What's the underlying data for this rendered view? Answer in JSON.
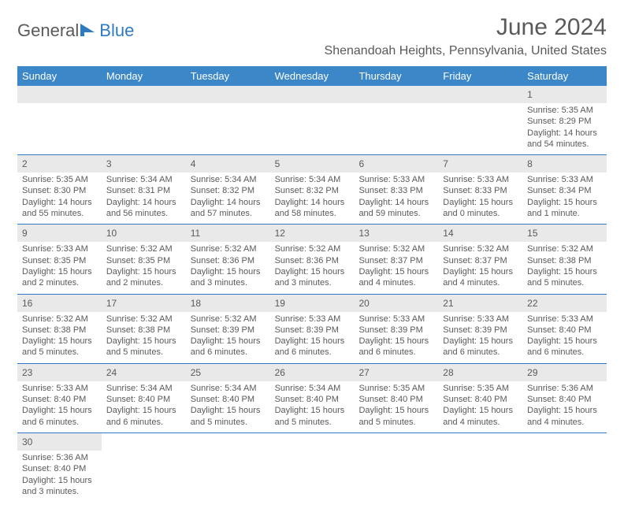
{
  "brand": {
    "general": "General",
    "blue": "Blue"
  },
  "title": "June 2024",
  "location": "Shenandoah Heights, Pennsylvania, United States",
  "colors": {
    "header_bg": "#3b87c8",
    "header_text": "#ffffff",
    "body_text": "#5a5a5a",
    "week_border": "#2f7bbf",
    "daynum_bg": "#e9e9e9",
    "logo_accent": "#2f7bbf"
  },
  "fonts": {
    "title_pt": 30,
    "location_pt": 16,
    "dayheader_pt": 13,
    "daynum_pt": 12,
    "body_pt": 11
  },
  "day_names": [
    "Sunday",
    "Monday",
    "Tuesday",
    "Wednesday",
    "Thursday",
    "Friday",
    "Saturday"
  ],
  "weeks": [
    [
      null,
      null,
      null,
      null,
      null,
      null,
      {
        "n": "1",
        "sr": "Sunrise: 5:35 AM",
        "ss": "Sunset: 8:29 PM",
        "d1": "Daylight: 14 hours",
        "d2": "and 54 minutes."
      }
    ],
    [
      {
        "n": "2",
        "sr": "Sunrise: 5:35 AM",
        "ss": "Sunset: 8:30 PM",
        "d1": "Daylight: 14 hours",
        "d2": "and 55 minutes."
      },
      {
        "n": "3",
        "sr": "Sunrise: 5:34 AM",
        "ss": "Sunset: 8:31 PM",
        "d1": "Daylight: 14 hours",
        "d2": "and 56 minutes."
      },
      {
        "n": "4",
        "sr": "Sunrise: 5:34 AM",
        "ss": "Sunset: 8:32 PM",
        "d1": "Daylight: 14 hours",
        "d2": "and 57 minutes."
      },
      {
        "n": "5",
        "sr": "Sunrise: 5:34 AM",
        "ss": "Sunset: 8:32 PM",
        "d1": "Daylight: 14 hours",
        "d2": "and 58 minutes."
      },
      {
        "n": "6",
        "sr": "Sunrise: 5:33 AM",
        "ss": "Sunset: 8:33 PM",
        "d1": "Daylight: 14 hours",
        "d2": "and 59 minutes."
      },
      {
        "n": "7",
        "sr": "Sunrise: 5:33 AM",
        "ss": "Sunset: 8:33 PM",
        "d1": "Daylight: 15 hours",
        "d2": "and 0 minutes."
      },
      {
        "n": "8",
        "sr": "Sunrise: 5:33 AM",
        "ss": "Sunset: 8:34 PM",
        "d1": "Daylight: 15 hours",
        "d2": "and 1 minute."
      }
    ],
    [
      {
        "n": "9",
        "sr": "Sunrise: 5:33 AM",
        "ss": "Sunset: 8:35 PM",
        "d1": "Daylight: 15 hours",
        "d2": "and 2 minutes."
      },
      {
        "n": "10",
        "sr": "Sunrise: 5:32 AM",
        "ss": "Sunset: 8:35 PM",
        "d1": "Daylight: 15 hours",
        "d2": "and 2 minutes."
      },
      {
        "n": "11",
        "sr": "Sunrise: 5:32 AM",
        "ss": "Sunset: 8:36 PM",
        "d1": "Daylight: 15 hours",
        "d2": "and 3 minutes."
      },
      {
        "n": "12",
        "sr": "Sunrise: 5:32 AM",
        "ss": "Sunset: 8:36 PM",
        "d1": "Daylight: 15 hours",
        "d2": "and 3 minutes."
      },
      {
        "n": "13",
        "sr": "Sunrise: 5:32 AM",
        "ss": "Sunset: 8:37 PM",
        "d1": "Daylight: 15 hours",
        "d2": "and 4 minutes."
      },
      {
        "n": "14",
        "sr": "Sunrise: 5:32 AM",
        "ss": "Sunset: 8:37 PM",
        "d1": "Daylight: 15 hours",
        "d2": "and 4 minutes."
      },
      {
        "n": "15",
        "sr": "Sunrise: 5:32 AM",
        "ss": "Sunset: 8:38 PM",
        "d1": "Daylight: 15 hours",
        "d2": "and 5 minutes."
      }
    ],
    [
      {
        "n": "16",
        "sr": "Sunrise: 5:32 AM",
        "ss": "Sunset: 8:38 PM",
        "d1": "Daylight: 15 hours",
        "d2": "and 5 minutes."
      },
      {
        "n": "17",
        "sr": "Sunrise: 5:32 AM",
        "ss": "Sunset: 8:38 PM",
        "d1": "Daylight: 15 hours",
        "d2": "and 5 minutes."
      },
      {
        "n": "18",
        "sr": "Sunrise: 5:32 AM",
        "ss": "Sunset: 8:39 PM",
        "d1": "Daylight: 15 hours",
        "d2": "and 6 minutes."
      },
      {
        "n": "19",
        "sr": "Sunrise: 5:33 AM",
        "ss": "Sunset: 8:39 PM",
        "d1": "Daylight: 15 hours",
        "d2": "and 6 minutes."
      },
      {
        "n": "20",
        "sr": "Sunrise: 5:33 AM",
        "ss": "Sunset: 8:39 PM",
        "d1": "Daylight: 15 hours",
        "d2": "and 6 minutes."
      },
      {
        "n": "21",
        "sr": "Sunrise: 5:33 AM",
        "ss": "Sunset: 8:39 PM",
        "d1": "Daylight: 15 hours",
        "d2": "and 6 minutes."
      },
      {
        "n": "22",
        "sr": "Sunrise: 5:33 AM",
        "ss": "Sunset: 8:40 PM",
        "d1": "Daylight: 15 hours",
        "d2": "and 6 minutes."
      }
    ],
    [
      {
        "n": "23",
        "sr": "Sunrise: 5:33 AM",
        "ss": "Sunset: 8:40 PM",
        "d1": "Daylight: 15 hours",
        "d2": "and 6 minutes."
      },
      {
        "n": "24",
        "sr": "Sunrise: 5:34 AM",
        "ss": "Sunset: 8:40 PM",
        "d1": "Daylight: 15 hours",
        "d2": "and 6 minutes."
      },
      {
        "n": "25",
        "sr": "Sunrise: 5:34 AM",
        "ss": "Sunset: 8:40 PM",
        "d1": "Daylight: 15 hours",
        "d2": "and 5 minutes."
      },
      {
        "n": "26",
        "sr": "Sunrise: 5:34 AM",
        "ss": "Sunset: 8:40 PM",
        "d1": "Daylight: 15 hours",
        "d2": "and 5 minutes."
      },
      {
        "n": "27",
        "sr": "Sunrise: 5:35 AM",
        "ss": "Sunset: 8:40 PM",
        "d1": "Daylight: 15 hours",
        "d2": "and 5 minutes."
      },
      {
        "n": "28",
        "sr": "Sunrise: 5:35 AM",
        "ss": "Sunset: 8:40 PM",
        "d1": "Daylight: 15 hours",
        "d2": "and 4 minutes."
      },
      {
        "n": "29",
        "sr": "Sunrise: 5:36 AM",
        "ss": "Sunset: 8:40 PM",
        "d1": "Daylight: 15 hours",
        "d2": "and 4 minutes."
      }
    ],
    [
      {
        "n": "30",
        "sr": "Sunrise: 5:36 AM",
        "ss": "Sunset: 8:40 PM",
        "d1": "Daylight: 15 hours",
        "d2": "and 3 minutes."
      },
      null,
      null,
      null,
      null,
      null,
      null
    ]
  ]
}
